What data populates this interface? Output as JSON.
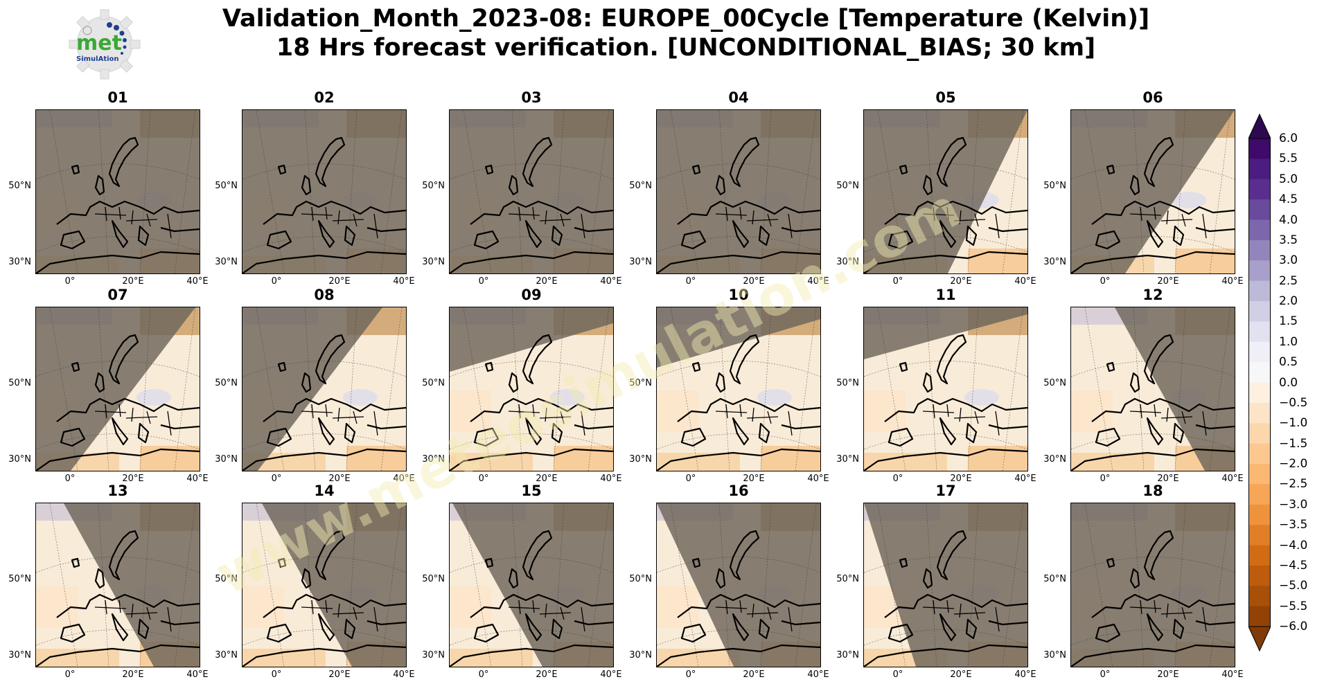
{
  "title_line1": "Validation_Month_2023-08: EUROPE_00Cycle [Temperature (Kelvin)]",
  "title_line2": "18 Hrs forecast verification. [UNCONDITIONAL_BIAS; 30 km]",
  "logo": {
    "text_main": "met",
    "text_sub": "SimulAtion",
    "icon": "gear-icon"
  },
  "watermark": "www.meteosimulation.com",
  "axis_labels": {
    "lat_top": "50°N",
    "lat_bottom": "30°N",
    "lon_1": "0°",
    "lon_2": "20°E",
    "lon_3": "40°E"
  },
  "panels": [
    {
      "label": "01",
      "night_fraction": 1.0
    },
    {
      "label": "02",
      "night_fraction": 1.0
    },
    {
      "label": "03",
      "night_fraction": 1.0
    },
    {
      "label": "04",
      "night_fraction": 1.0
    },
    {
      "label": "05",
      "night_fraction": 0.85
    },
    {
      "label": "06",
      "night_fraction": 0.7
    },
    {
      "label": "07",
      "night_fraction": 0.6
    },
    {
      "label": "08",
      "night_fraction": 0.5
    },
    {
      "label": "09",
      "night_fraction": 0.45
    },
    {
      "label": "10",
      "night_fraction": 0.4
    },
    {
      "label": "11",
      "night_fraction": 0.3
    },
    {
      "label": "12",
      "night_fraction": 0.35
    },
    {
      "label": "13",
      "night_fraction": 0.45
    },
    {
      "label": "14",
      "night_fraction": 0.5
    },
    {
      "label": "15",
      "night_fraction": 0.6
    },
    {
      "label": "16",
      "night_fraction": 0.7
    },
    {
      "label": "17",
      "night_fraction": 0.85
    },
    {
      "label": "18",
      "night_fraction": 1.0
    }
  ],
  "colorbar": {
    "ticks": [
      "6.0",
      "5.5",
      "5.0",
      "4.5",
      "4.0",
      "3.5",
      "3.0",
      "2.5",
      "2.0",
      "1.5",
      "1.0",
      "0.5",
      "0.0",
      "−0.5",
      "−1.0",
      "−1.5",
      "−2.0",
      "−2.5",
      "−3.0",
      "−3.5",
      "−4.0",
      "−4.5",
      "−5.0",
      "−5.5",
      "−6.0"
    ],
    "colors": [
      "#3f0a6b",
      "#4c1d80",
      "#5a2e8f",
      "#6a4a9c",
      "#7d67ac",
      "#9385bc",
      "#a8a0cb",
      "#bdbad9",
      "#d1cfe5",
      "#e2e1ef",
      "#efeff7",
      "#f7f6f9",
      "#fdf0e1",
      "#fde4c8",
      "#fdd7ac",
      "#fcc88f",
      "#fab873",
      "#f6a656",
      "#ee933c",
      "#e27f26",
      "#d16c14",
      "#bd5c0c",
      "#a84f08",
      "#924206"
    ],
    "extend_top": "#2d0a4f",
    "extend_bottom": "#7f3b08"
  }
}
